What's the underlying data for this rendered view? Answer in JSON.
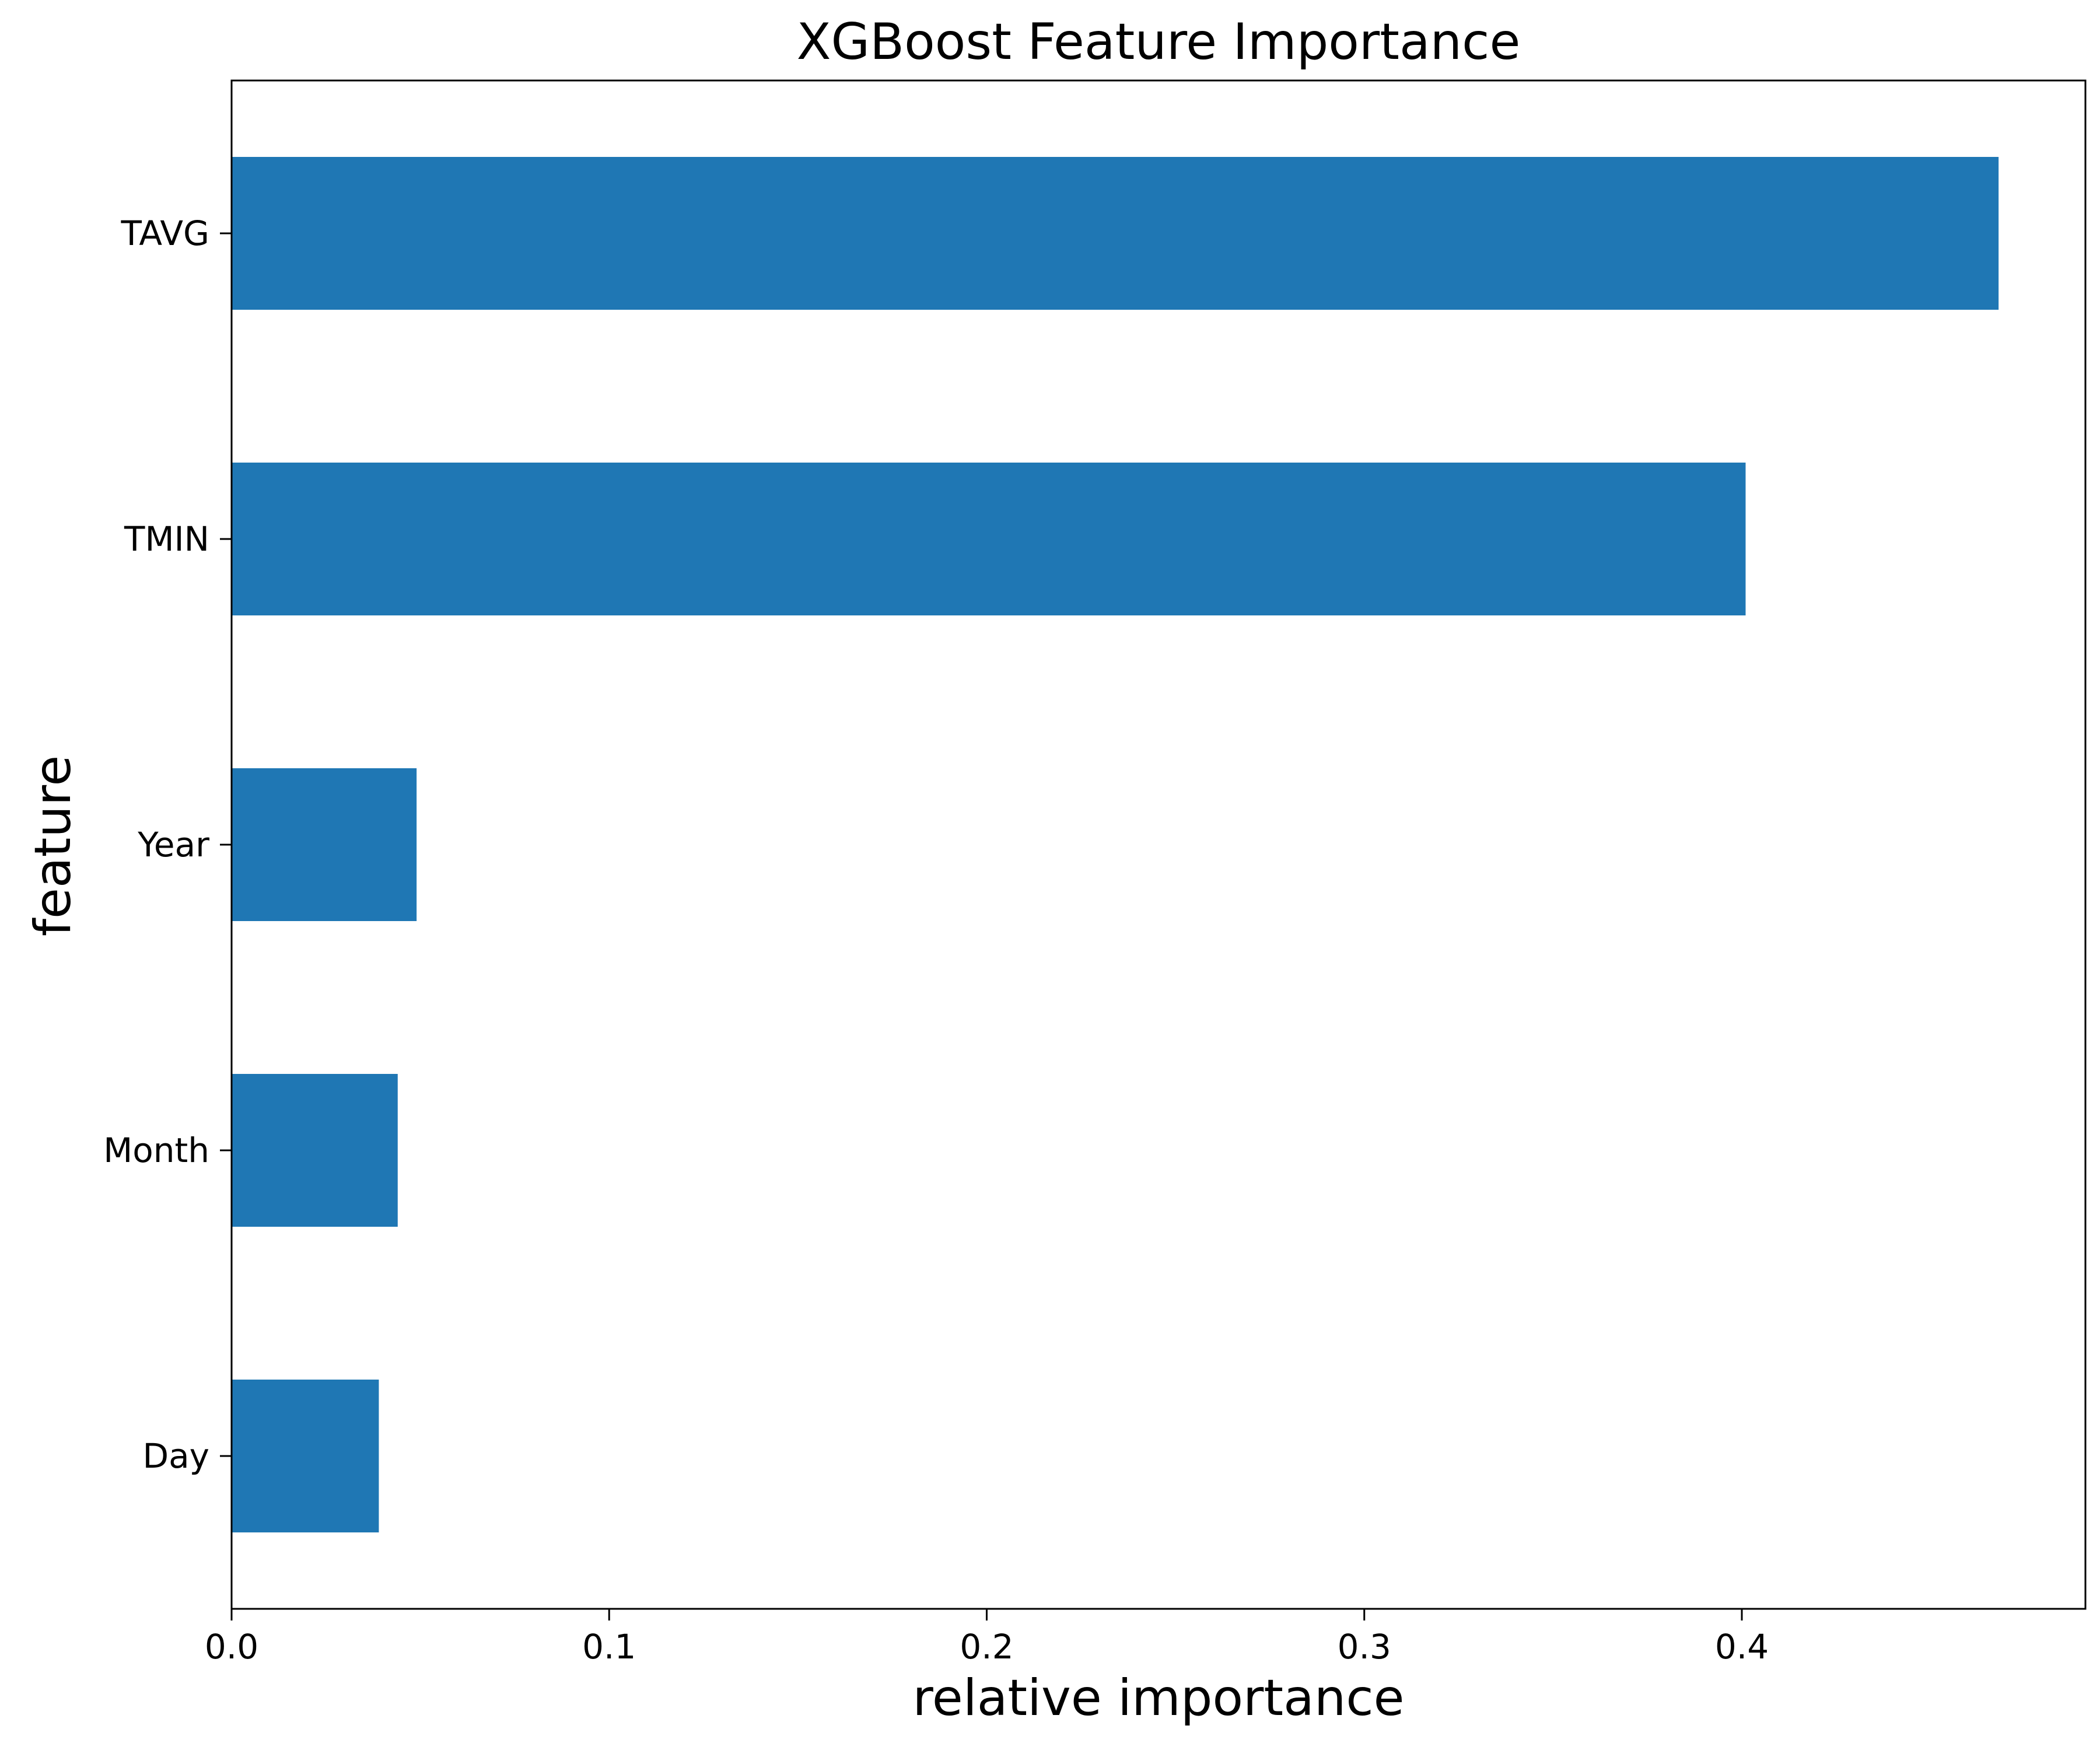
{
  "chart_data": {
    "type": "bar",
    "orientation": "horizontal",
    "title": "XGBoost Feature Importance",
    "xlabel": "relative importance",
    "ylabel": "feature",
    "categories": [
      "TAVG",
      "TMIN",
      "Year",
      "Month",
      "Day"
    ],
    "values": [
      0.468,
      0.401,
      0.049,
      0.044,
      0.039
    ],
    "xlim": [
      0,
      0.491
    ],
    "xticks": [
      0.0,
      0.1,
      0.2,
      0.3,
      0.4
    ],
    "xtick_labels": [
      "0.0",
      "0.1",
      "0.2",
      "0.3",
      "0.4"
    ],
    "grid": false,
    "bar_color": "#1f77b4"
  }
}
